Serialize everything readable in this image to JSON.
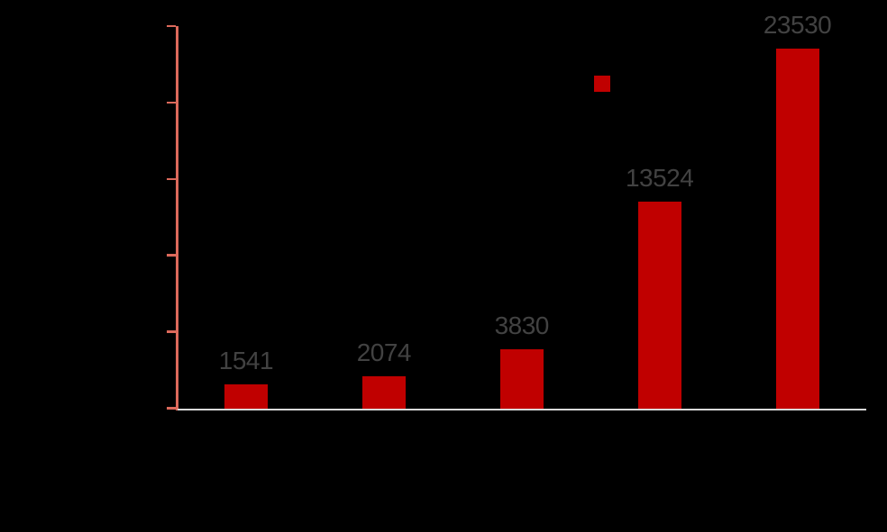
{
  "chart_data": {
    "type": "bar",
    "title": "",
    "values": [
      1541,
      2074,
      3830,
      13524,
      23530
    ],
    "data_labels": [
      "1541",
      "2074",
      "3830",
      "13524",
      "23530"
    ],
    "num_categories": 5,
    "category_tick_labels_visible": false,
    "ylim": [
      0,
      25000
    ],
    "ytick_interval": 5000,
    "ytick_count": 6,
    "ytick_labels_visible": false,
    "grid": false,
    "legend": {
      "marker": "red-square",
      "marker_color": "#c00000",
      "label_visible": false
    },
    "colors": {
      "background": "#000000",
      "bar": "#c00000",
      "value_label": "#424242",
      "y_axis": "#dc695b",
      "x_axis": "#d9d9d9"
    }
  }
}
